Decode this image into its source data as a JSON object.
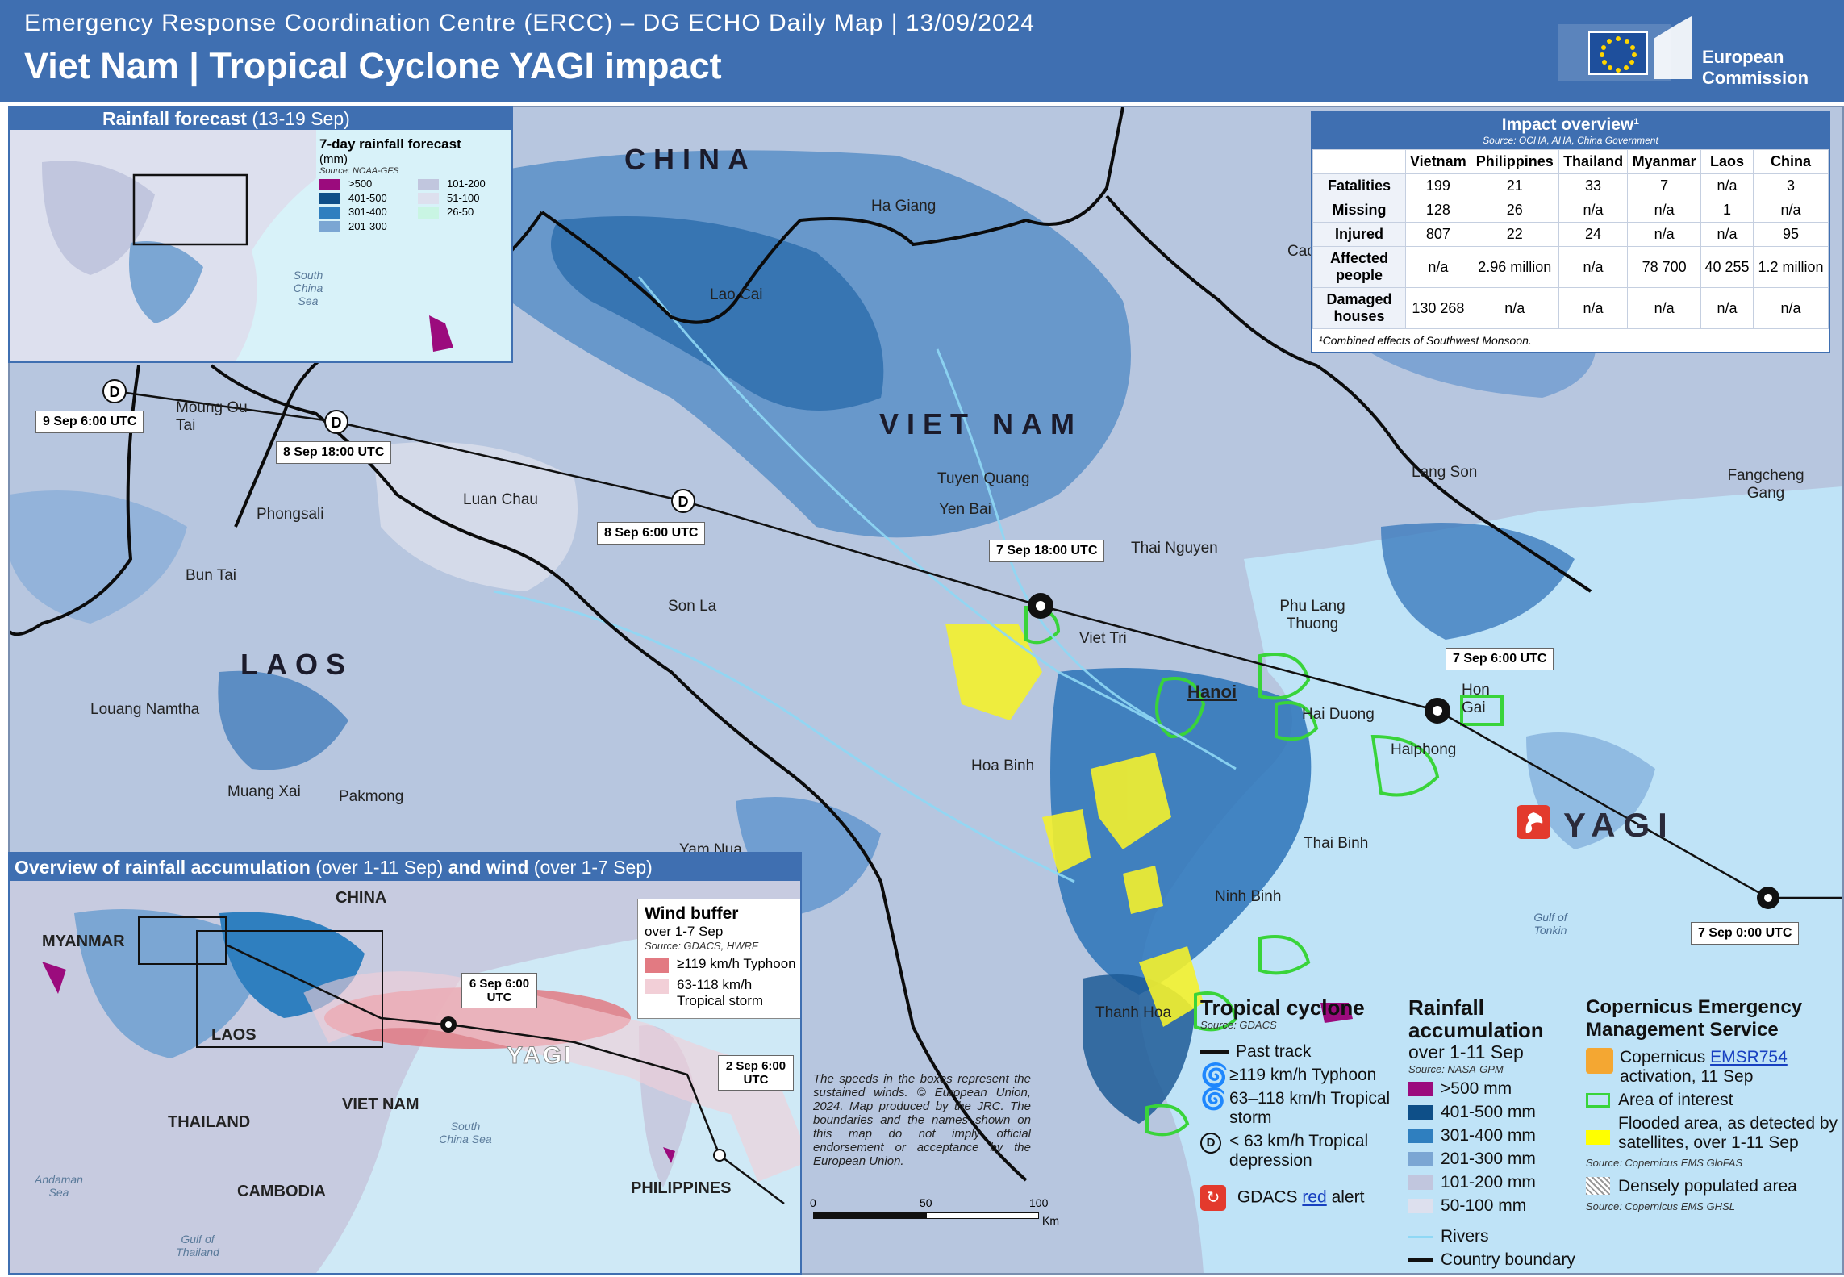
{
  "header": {
    "subtitle": "Emergency Response Coordination Centre (ERCC) – DG ECHO Daily Map | 13/09/2024",
    "title": "Viet Nam | Tropical Cyclone YAGI impact",
    "logo_line1": "European",
    "logo_line2": "Commission"
  },
  "inset_forecast": {
    "title": "Rainfall forecast",
    "period": "(13-19 Sep)",
    "legend_title": "7-day rainfall forecast",
    "legend_unit": "(mm)",
    "legend_source": "Source: NOAA-GFS",
    "classes": [
      {
        "label": ">500",
        "color": "#9b0b7d"
      },
      {
        "label": "401-500",
        "color": "#0e4f88"
      },
      {
        "label": "301-400",
        "color": "#2f7fbf"
      },
      {
        "label": "201-300",
        "color": "#7ba6d3"
      },
      {
        "label": "101-200",
        "color": "#c1c6de"
      },
      {
        "label": "51-100",
        "color": "#dde0ee"
      },
      {
        "label": "26-50",
        "color": "#c9f5e3"
      }
    ],
    "sea_label": "South China Sea"
  },
  "main_map": {
    "countries": {
      "china": "CHINA",
      "vietnam": "VIET NAM",
      "laos": "LAOS"
    },
    "storm_name": "YAGI",
    "track_labels": {
      "t1": "9 Sep 6:00 UTC",
      "t2": "8 Sep 18:00 UTC",
      "t3": "8 Sep 6:00 UTC",
      "t4": "7 Sep 18:00 UTC",
      "t5": "7 Sep 6:00 UTC",
      "t6": "7 Sep 0:00 UTC"
    },
    "places": {
      "ha_giang": "Ha Giang",
      "lao_cai": "Lao Cai",
      "moung": "Moung Ou Tai",
      "phongsali": "Phongsali",
      "luan_chau": "Luan Chau",
      "bun_tai": "Bun Tai",
      "tuyen_quang": "Tuyen Quang",
      "yen_bai": "Yen Bai",
      "thai_nguyen": "Thai Nguyen",
      "lang_son": "Lang Son",
      "fangcheng": "Fangcheng Gang",
      "son_la": "Son La",
      "viet_tri": "Viet Tri",
      "phu_lang": "Phu Lang Thuong",
      "hanoi": "Hanoi",
      "hai_duong": "Hai Duong",
      "hon_gai": "Hon Gai",
      "haiphong": "Haiphong",
      "hoa_binh": "Hoa Binh",
      "thai_binh": "Thai Binh",
      "ninh_binh": "Ninh Binh",
      "thanh_hoa": "Thanh Hoa",
      "louang_namtha": "Louang Namtha",
      "muang_xai": "Muang Xai",
      "pakmong": "Pakmong",
      "yam_nua": "Yam Nua",
      "cao": "Cao",
      "gulf": "Gulf of Tonkin"
    },
    "disclaimer": "The speeds in the boxes represent the sustained winds. © European Union, 2024. Map produced by the JRC. The boundaries and the names shown on this map do not imply official endorsement or acceptance by the European Union.",
    "scale": {
      "s0": "0",
      "s1": "50",
      "s2": "100",
      "unit": "Km"
    }
  },
  "impact": {
    "title": "Impact overview¹",
    "source": "Source: OCHA, AHA, China Government",
    "columns": [
      "Vietnam",
      "Philippines",
      "Thailand",
      "Myanmar",
      "Laos",
      "China"
    ],
    "rows": [
      {
        "label": "Fatalities",
        "values": [
          "199",
          "21",
          "33",
          "7",
          "n/a",
          "3"
        ]
      },
      {
        "label": "Missing",
        "values": [
          "128",
          "26",
          "n/a",
          "n/a",
          "1",
          "n/a"
        ]
      },
      {
        "label": "Injured",
        "values": [
          "807",
          "22",
          "24",
          "n/a",
          "n/a",
          "95"
        ]
      },
      {
        "label": "Affected people",
        "values": [
          "n/a",
          "2.96 million",
          "n/a",
          "78 700",
          "40 255",
          "1.2 million"
        ]
      },
      {
        "label": "Damaged houses",
        "values": [
          "130 268",
          "n/a",
          "n/a",
          "n/a",
          "n/a",
          "n/a"
        ]
      }
    ],
    "footnote": "¹Combined effects of Southwest Monsoon."
  },
  "inset_overview": {
    "title": "Overview of rainfall accumulation",
    "title_p1": "(over 1-11 Sep)",
    "title_and": "and wind",
    "title_p2": "(over 1-7 Sep)",
    "countries": {
      "china": "CHINA",
      "myanmar": "MYANMAR",
      "laos": "LAOS",
      "thailand": "THAILAND",
      "vietnam": "VIET NAM",
      "cambodia": "CAMBODIA",
      "philippines": "PHILIPPINES"
    },
    "seas": {
      "scs": "South China Sea",
      "andaman": "Andaman Sea",
      "gulf_thailand": "Gulf of Thailand"
    },
    "storm_name": "YAGI",
    "track_labels": {
      "a": "6 Sep 6:00 UTC",
      "b": "2 Sep 6:00 UTC"
    },
    "wind_buffer": {
      "title": "Wind buffer",
      "period": "over 1-7 Sep",
      "source": "Source: GDACS, HWRF",
      "typhoon": "≥119 km/h Typhoon",
      "storm": "63-118 km/h Tropical storm",
      "typhoon_color": "#e27a82",
      "storm_color": "#f2cfd7"
    }
  },
  "legend_cyclone": {
    "title": "Tropical cyclone",
    "source": "Source: GDACS",
    "past_track": "Past track",
    "typhoon": "≥119 km/h Typhoon",
    "storm": "63–118 km/h Tropical storm",
    "depression": "< 63 km/h Tropical depression",
    "gdacs_pre": "GDACS",
    "gdacs_red": "red",
    "gdacs_post": "alert"
  },
  "legend_rain": {
    "title": "Rainfall accumulation",
    "period": "over 1-11 Sep",
    "source": "Source: NASA-GPM",
    "classes": [
      {
        "label": ">500 mm",
        "color": "#9b0b7d"
      },
      {
        "label": "401-500 mm",
        "color": "#0e4f88"
      },
      {
        "label": "301-400 mm",
        "color": "#2f7fbf"
      },
      {
        "label": "201-300 mm",
        "color": "#7ba6d3"
      },
      {
        "label": "101-200 mm",
        "color": "#c1c6de"
      },
      {
        "label": "50-100 mm",
        "color": "#dde0ee"
      }
    ],
    "rivers": "Rivers",
    "boundary": "Country boundary"
  },
  "legend_cems": {
    "title": "Copernicus Emergency Management Service",
    "activation_pre": "Copernicus",
    "activation_link": "EMSR754",
    "activation_post": "activation, 11 Sep",
    "aoi": "Area of interest",
    "flooded": "Flooded area, as detected by satellites, over 1-11 Sep",
    "flooded_source": "Source: Copernicus EMS GloFAS",
    "populated": "Densely populated area",
    "populated_source": "Source: Copernicus EMS GHSL",
    "flood_color": "#ffff00",
    "aoi_color": "#39d43a"
  }
}
